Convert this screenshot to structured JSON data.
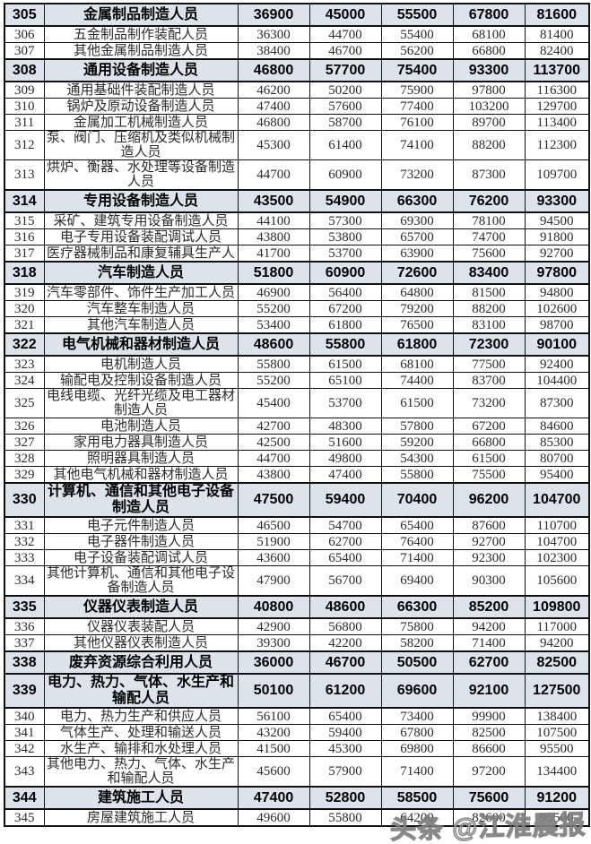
{
  "colors": {
    "section_row_bg": "#dde3eb",
    "grid_border": "#101010",
    "body_text": "#2b2b2b"
  },
  "watermark": {
    "text": "头条 @江淮晨报"
  },
  "table": {
    "rows": [
      {
        "code": "305",
        "name": "金属制品制造人员",
        "values": [
          "36900",
          "45000",
          "55500",
          "67800",
          "81600"
        ],
        "section": true
      },
      {
        "code": "306",
        "name": "五金制品制作装配人员",
        "values": [
          "36300",
          "44700",
          "55400",
          "68100",
          "81400"
        ],
        "section": false
      },
      {
        "code": "307",
        "name": "其他金属制品制造人员",
        "values": [
          "38400",
          "46700",
          "56200",
          "66800",
          "82400"
        ],
        "section": false
      },
      {
        "code": "308",
        "name": "通用设备制造人员",
        "values": [
          "46800",
          "57700",
          "75400",
          "93300",
          "113700"
        ],
        "section": true
      },
      {
        "code": "309",
        "name": "通用基础件装配制造人员",
        "values": [
          "46200",
          "50200",
          "75900",
          "97800",
          "116300"
        ],
        "section": false
      },
      {
        "code": "310",
        "name": "锅炉及原动设备制造人员",
        "values": [
          "47400",
          "57600",
          "77400",
          "103200",
          "129700"
        ],
        "section": false
      },
      {
        "code": "311",
        "name": "金属加工机械制造人员",
        "values": [
          "46800",
          "58700",
          "76100",
          "89700",
          "113400"
        ],
        "section": false
      },
      {
        "code": "312",
        "name": "泵、阀门、压缩机及类似机械制造人员",
        "values": [
          "45300",
          "61400",
          "74100",
          "88200",
          "112300"
        ],
        "section": false
      },
      {
        "code": "313",
        "name": "烘炉、衡器、水处理等设备制造人员",
        "values": [
          "44700",
          "60900",
          "73200",
          "87300",
          "109700"
        ],
        "section": false
      },
      {
        "code": "314",
        "name": "专用设备制造人员",
        "values": [
          "43500",
          "54900",
          "66300",
          "76200",
          "93300"
        ],
        "section": true
      },
      {
        "code": "315",
        "name": "采矿、建筑专用设备制造人员",
        "values": [
          "44100",
          "57300",
          "69300",
          "78100",
          "94500"
        ],
        "section": false
      },
      {
        "code": "316",
        "name": "电子专用设备装配调试人员",
        "values": [
          "43800",
          "53800",
          "65700",
          "74700",
          "91800"
        ],
        "section": false
      },
      {
        "code": "317",
        "name": "医疗器械制品和康复辅具生产人",
        "values": [
          "41700",
          "53700",
          "63900",
          "75600",
          "92700"
        ],
        "section": false
      },
      {
        "code": "318",
        "name": "汽车制造人员",
        "values": [
          "51800",
          "60900",
          "72600",
          "83400",
          "97800"
        ],
        "section": true
      },
      {
        "code": "319",
        "name": "汽车零部件、饰件生产加工人员",
        "values": [
          "46900",
          "56400",
          "64800",
          "81500",
          "94800"
        ],
        "section": false
      },
      {
        "code": "320",
        "name": "汽车整车制造人员",
        "values": [
          "55200",
          "67200",
          "79200",
          "88200",
          "102600"
        ],
        "section": false
      },
      {
        "code": "321",
        "name": "其他汽车制造人员",
        "values": [
          "53400",
          "61800",
          "76500",
          "83100",
          "98700"
        ],
        "section": false
      },
      {
        "code": "322",
        "name": "电气机械和器材制造人员",
        "values": [
          "48600",
          "55800",
          "61800",
          "72300",
          "90100"
        ],
        "section": true
      },
      {
        "code": "323",
        "name": "电机制造人员",
        "values": [
          "55800",
          "61500",
          "68100",
          "77500",
          "92400"
        ],
        "section": false
      },
      {
        "code": "324",
        "name": "输配电及控制设备制造人员",
        "values": [
          "55200",
          "65100",
          "74400",
          "83700",
          "104400"
        ],
        "section": false
      },
      {
        "code": "325",
        "name": "电线电缆、光纤光缆及电工器材制造人员",
        "values": [
          "45400",
          "53700",
          "61500",
          "73200",
          "87300"
        ],
        "section": false
      },
      {
        "code": "326",
        "name": "电池制造人员",
        "values": [
          "42700",
          "48300",
          "57800",
          "67200",
          "84600"
        ],
        "section": false
      },
      {
        "code": "327",
        "name": "家用电力器具制造人员",
        "values": [
          "42500",
          "51600",
          "59200",
          "66800",
          "85300"
        ],
        "section": false
      },
      {
        "code": "328",
        "name": "照明器具制造人员",
        "values": [
          "44700",
          "49800",
          "54300",
          "61500",
          "80700"
        ],
        "section": false
      },
      {
        "code": "329",
        "name": "其他电气机械和器材制造人员",
        "values": [
          "43800",
          "47400",
          "55800",
          "75500",
          "95400"
        ],
        "section": false
      },
      {
        "code": "330",
        "name": "计算机、通信和其他电子设备制造人员",
        "values": [
          "47500",
          "59400",
          "70400",
          "96200",
          "104700"
        ],
        "section": true
      },
      {
        "code": "331",
        "name": "电子元件制造人员",
        "values": [
          "46500",
          "54700",
          "65400",
          "87600",
          "110700"
        ],
        "section": false
      },
      {
        "code": "332",
        "name": "电子器件制造人员",
        "values": [
          "51900",
          "62700",
          "76400",
          "92700",
          "104700"
        ],
        "section": false
      },
      {
        "code": "333",
        "name": "电子设备装配调试人员",
        "values": [
          "43600",
          "65400",
          "71400",
          "92300",
          "102300"
        ],
        "section": false
      },
      {
        "code": "334",
        "name": "其他计算机、通信和其他电子设备制造人员",
        "values": [
          "47900",
          "56700",
          "69400",
          "90300",
          "105600"
        ],
        "section": false
      },
      {
        "code": "335",
        "name": "仪器仪表制造人员",
        "values": [
          "40800",
          "48600",
          "66300",
          "85200",
          "109800"
        ],
        "section": true
      },
      {
        "code": "336",
        "name": "仪器仪表装配人员",
        "values": [
          "42900",
          "56800",
          "75800",
          "94200",
          "117000"
        ],
        "section": false
      },
      {
        "code": "337",
        "name": "其他仪器仪表制造人员",
        "values": [
          "39300",
          "42200",
          "58200",
          "71400",
          "94200"
        ],
        "section": false
      },
      {
        "code": "338",
        "name": "废弃资源综合利用人员",
        "values": [
          "36000",
          "46700",
          "50500",
          "62700",
          "82500"
        ],
        "section": true
      },
      {
        "code": "339",
        "name": "电力、热力、气体、水生产和输配人员",
        "values": [
          "50100",
          "61200",
          "69600",
          "92100",
          "127500"
        ],
        "section": true
      },
      {
        "code": "340",
        "name": "电力、热力生产和供应人员",
        "values": [
          "56100",
          "65400",
          "73400",
          "99900",
          "138400"
        ],
        "section": false
      },
      {
        "code": "341",
        "name": "气体生产、处理和输送人员",
        "values": [
          "43200",
          "59400",
          "67800",
          "82500",
          "107500"
        ],
        "section": false
      },
      {
        "code": "342",
        "name": "水生产、输排和水处理人员",
        "values": [
          "41500",
          "45300",
          "69800",
          "86600",
          "95500"
        ],
        "section": false
      },
      {
        "code": "343",
        "name": "其他电力、热力、气体、水生产和输配人员",
        "values": [
          "45600",
          "57900",
          "71400",
          "97200",
          "134400"
        ],
        "section": false
      },
      {
        "code": "344",
        "name": "建筑施工人员",
        "values": [
          "47400",
          "52800",
          "58500",
          "75600",
          "91200"
        ],
        "section": true
      },
      {
        "code": "345",
        "name": "房屋建筑施工人员",
        "values": [
          "49600",
          "55800",
          "64200",
          "82600",
          "95500"
        ],
        "section": false
      }
    ]
  }
}
